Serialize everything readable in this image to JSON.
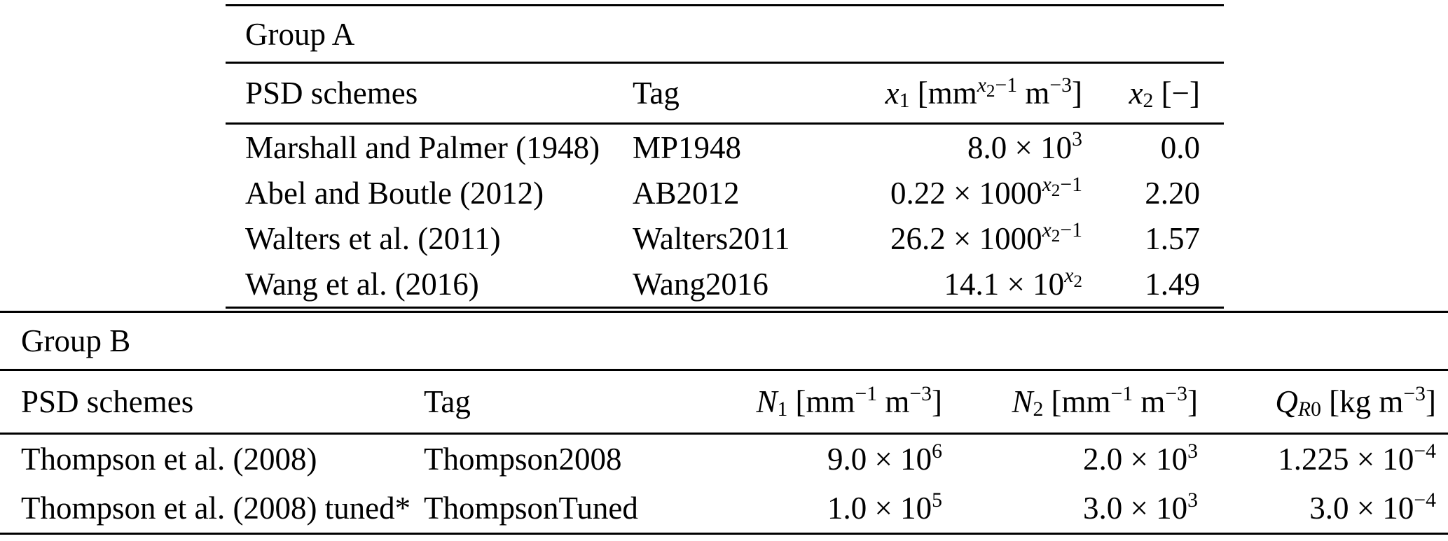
{
  "group_a": {
    "title": "Group A",
    "headers": {
      "scheme": "PSD schemes",
      "tag": "Tag",
      "x1_html": "<i>x</i><sub>1</sub> [mm<sup><i>x</i><sub>2</sub>−1</sup> m<sup>−3</sup>]",
      "x2_html": "<i>x</i><sub>2</sub> [−]"
    },
    "rows": [
      {
        "scheme": "Marshall and Palmer (1948)",
        "tag": "MP1948",
        "x1_html": "8.0 × 10<sup>3</sup>",
        "x2": "0.0"
      },
      {
        "scheme": "Abel and Boutle (2012)",
        "tag": "AB2012",
        "x1_html": "0.22 × 1000<sup><i>x</i><sub>2</sub>−1</sup>",
        "x2": "2.20"
      },
      {
        "scheme": "Walters et al. (2011)",
        "tag": "Walters2011",
        "x1_html": "26.2 × 1000<sup><i>x</i><sub>2</sub>−1</sup>",
        "x2": "1.57"
      },
      {
        "scheme": "Wang et al. (2016)",
        "tag": "Wang2016",
        "x1_html": "14.1 × 10<sup><i>x</i><sub>2</sub></sup>",
        "x2": "1.49"
      }
    ]
  },
  "group_b": {
    "title": "Group B",
    "headers": {
      "scheme": "PSD schemes",
      "tag": "Tag",
      "n1_html": "<i>N</i><sub>1</sub> [mm<sup>−1</sup> m<sup>−3</sup>]",
      "n2_html": "<i>N</i><sub>2</sub> [mm<sup>−1</sup> m<sup>−3</sup>]",
      "qr0_html": "<i>Q</i><sub><i>R</i>0</sub> [kg m<sup>−3</sup>]"
    },
    "rows": [
      {
        "scheme": "Thompson et al. (2008)",
        "tag": "Thompson2008",
        "n1_html": "9.0 × 10<sup>6</sup>",
        "n2_html": "2.0 × 10<sup>3</sup>",
        "qr0_html": "1.225 × 10<sup>−4</sup>"
      },
      {
        "scheme": "Thompson et al. (2008) tuned*",
        "tag": "ThompsonTuned",
        "n1_html": "1.0 × 10<sup>5</sup>",
        "n2_html": "3.0 × 10<sup>3</sup>",
        "qr0_html": "3.0 × 10<sup>−4</sup>"
      }
    ]
  },
  "colors": {
    "background": "#ffffff",
    "text": "#000000",
    "rule": "#000000"
  }
}
